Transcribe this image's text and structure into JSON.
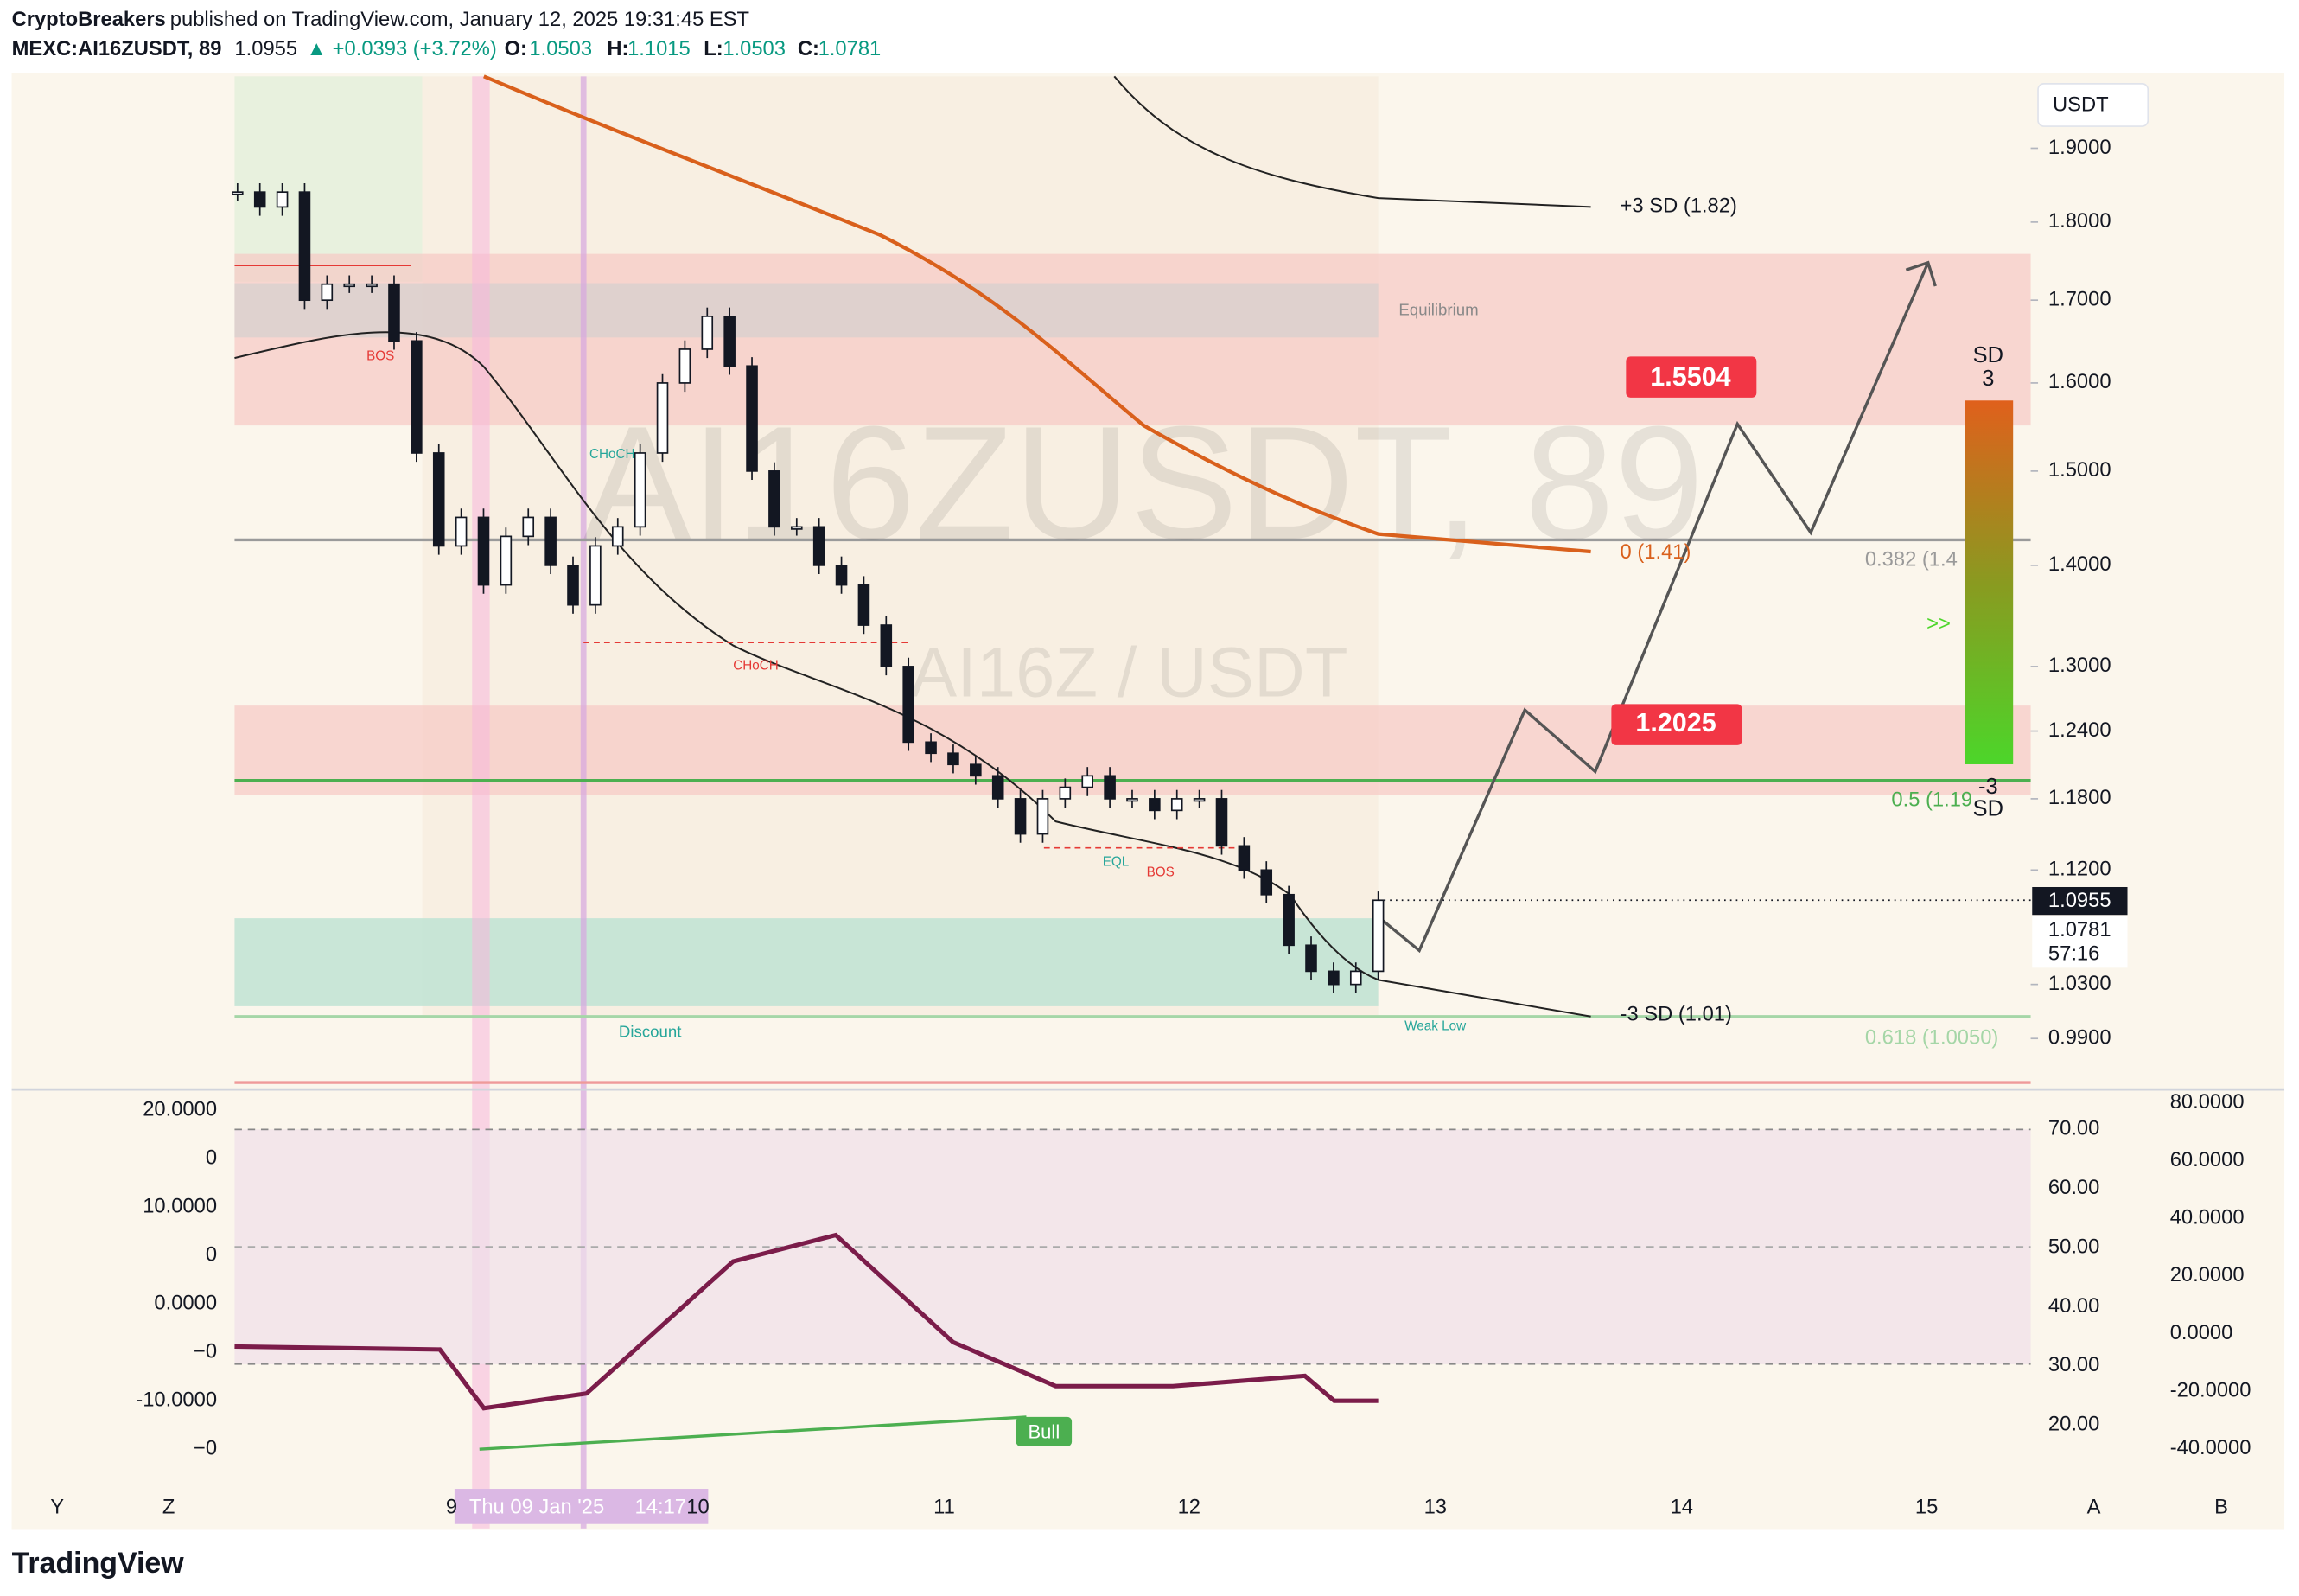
{
  "header": {
    "publisher": "CryptoBreakers",
    "published": "published on TradingView.com, January 12, 2025 19:31:45 EST",
    "symbol": "MEXC:AI16ZUSDT, 89",
    "last": "1.0955",
    "change": "▲ +0.0393 (+3.72%)",
    "o_label": "O:",
    "o": "1.0503",
    "h_label": "H:",
    "h": "1.1015",
    "l_label": "L:",
    "l": "1.0503",
    "c_label": "C:",
    "c": "1.0781"
  },
  "price_axis": {
    "currency": "USDT",
    "log_scale": true,
    "ticks": [
      {
        "value": 1.9,
        "label": "1.9000"
      },
      {
        "value": 1.8,
        "label": "1.8000"
      },
      {
        "value": 1.7,
        "label": "1.7000"
      },
      {
        "value": 1.6,
        "label": "1.6000"
      },
      {
        "value": 1.5,
        "label": "1.5000"
      },
      {
        "value": 1.4,
        "label": "1.4000"
      },
      {
        "value": 1.3,
        "label": "1.3000"
      },
      {
        "value": 1.24,
        "label": "1.2400"
      },
      {
        "value": 1.18,
        "label": "1.1800"
      },
      {
        "value": 1.12,
        "label": "1.1200"
      },
      {
        "value": 1.03,
        "label": "1.0300"
      },
      {
        "value": 0.99,
        "label": "0.9900"
      }
    ],
    "last_price": {
      "value": 1.0955,
      "label": "1.0955"
    },
    "close_label": "1.0781",
    "countdown": "57:16"
  },
  "series": {
    "closes": [
      1.84,
      1.82,
      1.84,
      1.7,
      1.72,
      1.72,
      1.72,
      1.65,
      1.52,
      1.42,
      1.45,
      1.38,
      1.43,
      1.45,
      1.4,
      1.36,
      1.42,
      1.44,
      1.52,
      1.6,
      1.64,
      1.68,
      1.62,
      1.5,
      1.44,
      1.44,
      1.4,
      1.38,
      1.34,
      1.3,
      1.23,
      1.22,
      1.21,
      1.2,
      1.18,
      1.15,
      1.18,
      1.19,
      1.2,
      1.18,
      1.18,
      1.17,
      1.18,
      1.18,
      1.14,
      1.12,
      1.1,
      1.06,
      1.04,
      1.03,
      1.04,
      1.0955
    ]
  },
  "annotations": {
    "sd_plus": "+3 SD (1.82)",
    "sd_minus": "-3 SD (1.01)",
    "fib_0": "0 (1.41)",
    "fib_382": "0.382 (1.4",
    "fib_5": "0.5 (1.19",
    "fib_618": "0.618 (1.0050)",
    "target_high": "1.5504",
    "target_low": "1.2025",
    "equilibrium": "Equilibrium",
    "discount": "Discount",
    "weak_low": "Weak Low",
    "bos_1": "BOS",
    "bos_2": "BOS",
    "choch_1": "CHoCH",
    "choch_2": "CHoCH",
    "eql": "EQL",
    "bull": "Bull",
    "sd_top": "SD",
    "sd_top_num": "3",
    "sd_bottom_num": "-3",
    "sd_bottom": "SD",
    "arrows": ">>"
  },
  "watermark": {
    "symbol": "AI16ZUSDT, 89",
    "pair": "AI16Z / USDT"
  },
  "time_axis": {
    "labels": [
      "9",
      "10",
      "11",
      "12",
      "13",
      "14",
      "15"
    ],
    "crosshair": "Thu 09 Jan '25",
    "crosshair_time": "14:17"
  },
  "indicator": {
    "left_labels": [
      "20.0000",
      "0",
      "10.0000",
      "0",
      "0.0000",
      "−0",
      "-10.0000",
      "−0"
    ],
    "mid_labels": [
      "70.00",
      "60.00",
      "50.00",
      "40.00",
      "30.00",
      "20.00"
    ],
    "right_labels": [
      "80.0000",
      "60.0000",
      "40.0000",
      "20.0000",
      "0.0000",
      "-20.0000",
      "-40.0000"
    ]
  },
  "footer": {
    "brand": "TradingView",
    "buttons": [
      "Y",
      "Z",
      "A",
      "B"
    ]
  }
}
